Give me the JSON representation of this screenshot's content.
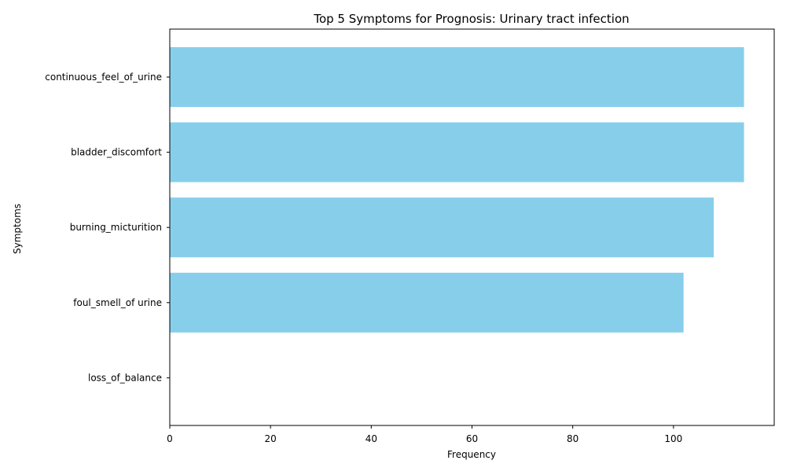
{
  "chart_data": {
    "type": "bar",
    "orientation": "horizontal",
    "title": "Top 5 Symptoms for Prognosis: Urinary tract infection",
    "xlabel": "Frequency",
    "ylabel": "Symptoms",
    "categories": [
      "continuous_feel_of_urine",
      "bladder_discomfort",
      "burning_micturition",
      "foul_smell_of urine",
      "loss_of_balance"
    ],
    "values": [
      114,
      114,
      108,
      102,
      0
    ],
    "xlim": [
      0,
      120
    ],
    "xticks": [
      0,
      20,
      40,
      60,
      80,
      100
    ],
    "bar_color": "#87ceeb",
    "grid": false,
    "legend": "none"
  }
}
